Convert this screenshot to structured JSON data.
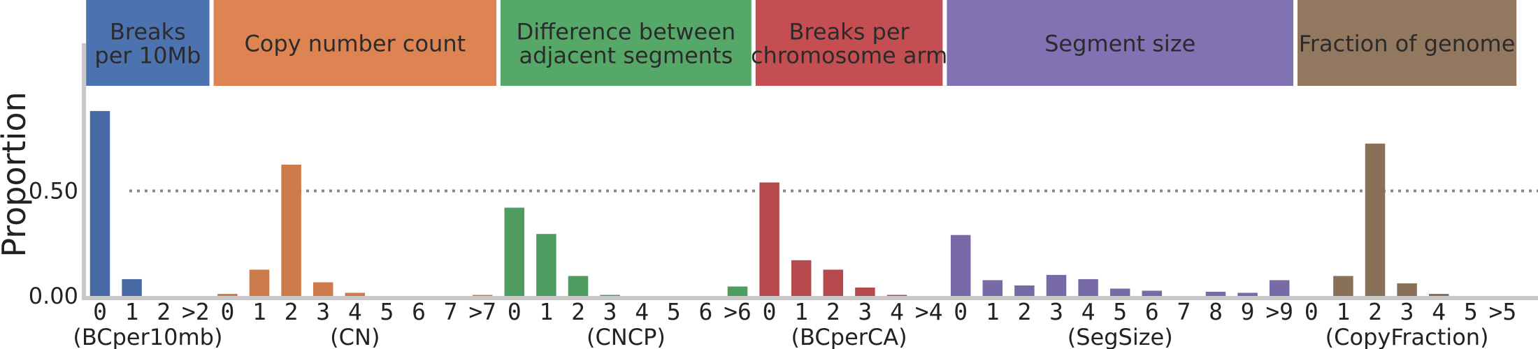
{
  "chart_data": {
    "type": "bar",
    "ylabel": "Proportion",
    "ylim": [
      0,
      0.95
    ],
    "yticks": [
      "0.00",
      "0.50"
    ],
    "reference_line": 0.5,
    "grid": false,
    "groups": [
      {
        "title": [
          "Breaks",
          "per 10Mb"
        ],
        "label": "(BCper10mb)",
        "color": "#4c72b0",
        "categories": [
          "0",
          "1",
          "2",
          ">2"
        ],
        "values": [
          0.88,
          0.08,
          0.0,
          0.0
        ]
      },
      {
        "title": [
          "Copy number count"
        ],
        "label": "(CN)",
        "color": "#dd8452",
        "categories": [
          "0",
          "1",
          "2",
          "3",
          "4",
          "5",
          "6",
          "7",
          ">7"
        ],
        "values": [
          0.01,
          0.125,
          0.625,
          0.065,
          0.015,
          0.0,
          0.0,
          0.0,
          0.005
        ]
      },
      {
        "title": [
          "Difference between",
          "adjacent segments"
        ],
        "label": "(CNCP)",
        "color": "#55a868",
        "categories": [
          "0",
          "1",
          "2",
          "3",
          "4",
          "5",
          "6",
          ">6"
        ],
        "values": [
          0.42,
          0.295,
          0.095,
          0.005,
          0.0,
          0.0,
          0.0,
          0.045
        ]
      },
      {
        "title": [
          "Breaks per",
          "chromosome arm"
        ],
        "label": "(BCperCA)",
        "color": "#c44e52",
        "categories": [
          "0",
          "1",
          "2",
          "3",
          "4",
          ">4"
        ],
        "values": [
          0.54,
          0.17,
          0.125,
          0.04,
          0.005,
          0.0
        ]
      },
      {
        "title": [
          "Segment size"
        ],
        "label": "(SegSize)",
        "color": "#8172b3",
        "categories": [
          "0",
          "1",
          "2",
          "3",
          "4",
          "5",
          "6",
          "7",
          "8",
          "9",
          ">9"
        ],
        "values": [
          0.29,
          0.075,
          0.05,
          0.1,
          0.08,
          0.035,
          0.025,
          0.0,
          0.02,
          0.015,
          0.075
        ]
      },
      {
        "title": [
          "Fraction of genome"
        ],
        "label": "(CopyFraction)",
        "color": "#937860",
        "categories": [
          "0",
          "1",
          "2",
          "3",
          "4",
          "5",
          ">5"
        ],
        "values": [
          0.0,
          0.095,
          0.725,
          0.06,
          0.01,
          0.0,
          0.0
        ]
      }
    ]
  }
}
